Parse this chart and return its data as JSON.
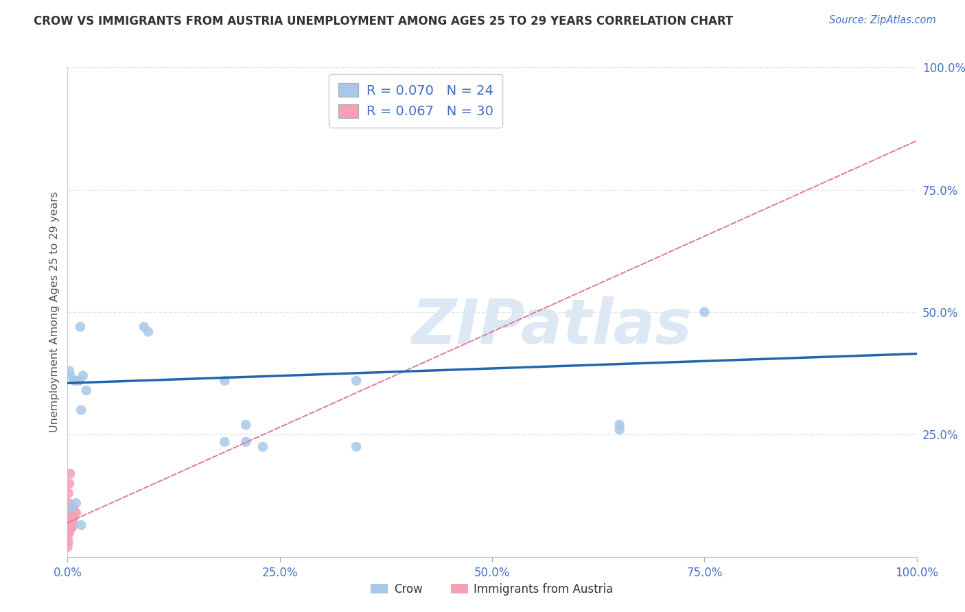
{
  "title": "CROW VS IMMIGRANTS FROM AUSTRIA UNEMPLOYMENT AMONG AGES 25 TO 29 YEARS CORRELATION CHART",
  "source": "Source: ZipAtlas.com",
  "ylabel": "Unemployment Among Ages 25 to 29 years",
  "legend_crow_r": "R = 0.070",
  "legend_crow_n": "N = 24",
  "legend_austria_r": "R = 0.067",
  "legend_austria_n": "N = 30",
  "crow_color": "#a8c8e8",
  "austria_color": "#f4a0b5",
  "crow_line_color": "#2166ac",
  "austria_line_color": "#e08098",
  "watermark_text": "ZIPatlas",
  "watermark_color": "#dde8f5",
  "background_color": "#ffffff",
  "grid_color": "#e8e8e8",
  "crow_x": [
    0.002,
    0.003,
    0.008,
    0.01,
    0.018,
    0.022,
    0.09,
    0.095,
    0.185,
    0.34,
    0.65,
    0.75,
    0.005,
    0.016,
    0.21,
    0.21,
    0.34,
    0.65,
    0.01,
    0.23,
    0.185,
    0.015,
    0.014,
    0.016
  ],
  "crow_y": [
    0.38,
    0.37,
    0.36,
    0.36,
    0.37,
    0.34,
    0.47,
    0.46,
    0.36,
    0.36,
    0.26,
    0.5,
    0.1,
    0.065,
    0.235,
    0.27,
    0.225,
    0.27,
    0.11,
    0.225,
    0.235,
    0.47,
    0.36,
    0.3
  ],
  "austria_x": [
    0.0,
    0.0,
    0.0,
    0.0,
    0.0,
    0.001,
    0.001,
    0.001,
    0.001,
    0.001,
    0.001,
    0.002,
    0.002,
    0.002,
    0.002,
    0.003,
    0.003,
    0.003,
    0.004,
    0.004,
    0.004,
    0.005,
    0.005,
    0.005,
    0.006,
    0.006,
    0.007,
    0.007,
    0.008,
    0.01
  ],
  "austria_y": [
    0.02,
    0.04,
    0.05,
    0.07,
    0.09,
    0.03,
    0.05,
    0.07,
    0.09,
    0.11,
    0.13,
    0.05,
    0.07,
    0.09,
    0.15,
    0.06,
    0.09,
    0.17,
    0.06,
    0.08,
    0.1,
    0.06,
    0.08,
    0.1,
    0.07,
    0.09,
    0.08,
    0.1,
    0.09,
    0.09
  ],
  "xmin": 0.0,
  "xmax": 1.0,
  "ymin": 0.0,
  "ymax": 1.0,
  "xticks": [
    0.0,
    0.25,
    0.5,
    0.75,
    1.0
  ],
  "yticks_right": [
    0.25,
    0.5,
    0.75,
    1.0
  ],
  "xticklabels": [
    "0.0%",
    "25.0%",
    "50.0%",
    "75.0%",
    "100.0%"
  ],
  "yticklabels_right": [
    "25.0%",
    "50.0%",
    "75.0%",
    "100.0%"
  ],
  "bottom_legend": [
    "Crow",
    "Immigrants from Austria"
  ],
  "austria_line_start_x": 0.0,
  "austria_line_start_y": 0.07,
  "austria_line_end_x": 1.0,
  "austria_line_end_y": 0.85
}
